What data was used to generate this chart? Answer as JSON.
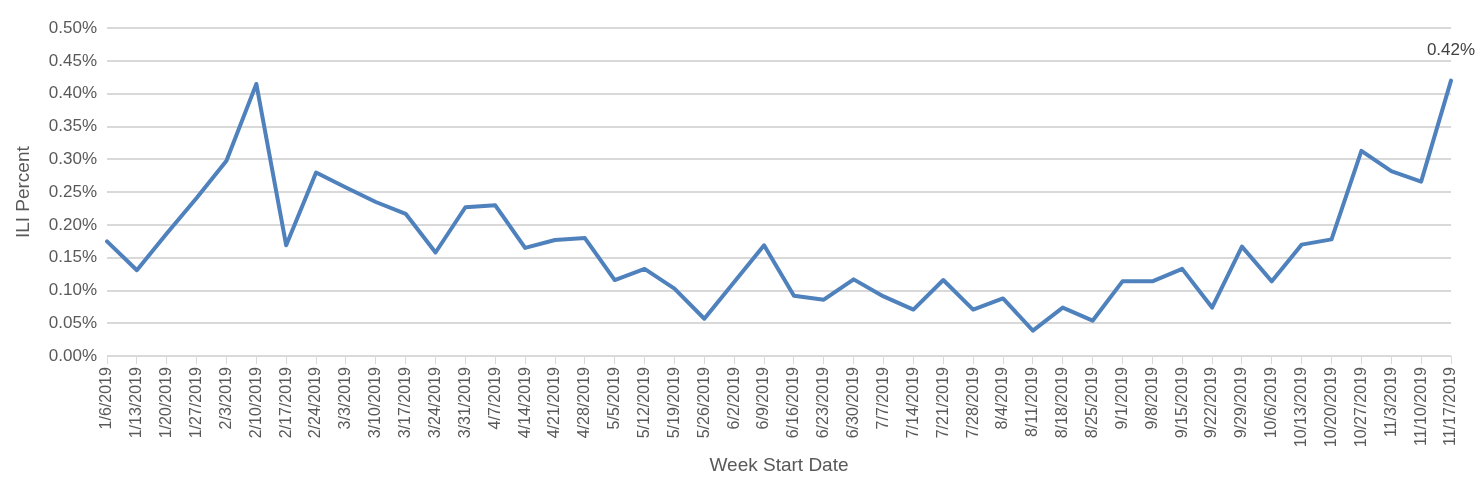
{
  "chart_data": {
    "type": "line",
    "xlabel": "Week Start Date",
    "ylabel": "ILI Percent",
    "categories": [
      "1/6/2019",
      "1/13/2019",
      "1/20/2019",
      "1/27/2019",
      "2/3/2019",
      "2/10/2019",
      "2/17/2019",
      "2/24/2019",
      "3/3/2019",
      "3/10/2019",
      "3/17/2019",
      "3/24/2019",
      "3/31/2019",
      "4/7/2019",
      "4/14/2019",
      "4/21/2019",
      "4/28/2019",
      "5/5/2019",
      "5/12/2019",
      "5/19/2019",
      "5/26/2019",
      "6/2/2019",
      "6/9/2019",
      "6/16/2019",
      "6/23/2019",
      "6/30/2019",
      "7/7/2019",
      "7/14/2019",
      "7/21/2019",
      "7/28/2019",
      "8/4/2019",
      "8/11/2019",
      "8/18/2019",
      "8/25/2019",
      "9/1/2019",
      "9/8/2019",
      "9/15/2019",
      "9/22/2019",
      "9/29/2019",
      "10/6/2019",
      "10/13/2019",
      "10/20/2019",
      "10/27/2019",
      "11/3/2019",
      "11/10/2019",
      "11/17/2019"
    ],
    "values": [
      0.175,
      0.131,
      0.187,
      0.241,
      0.298,
      0.415,
      0.169,
      0.28,
      0.257,
      0.235,
      0.217,
      0.158,
      0.227,
      0.23,
      0.165,
      0.177,
      0.18,
      0.116,
      0.133,
      0.103,
      0.057,
      0.113,
      0.169,
      0.092,
      0.086,
      0.117,
      0.091,
      0.071,
      0.116,
      0.071,
      0.088,
      0.039,
      0.074,
      0.054,
      0.114,
      0.114,
      0.133,
      0.074,
      0.167,
      0.114,
      0.17,
      0.178,
      0.313,
      0.282,
      0.266,
      0.42
    ],
    "value_labels": [
      null,
      null,
      null,
      null,
      null,
      null,
      null,
      null,
      null,
      null,
      null,
      null,
      null,
      null,
      null,
      null,
      null,
      null,
      null,
      null,
      null,
      null,
      null,
      null,
      null,
      null,
      null,
      null,
      null,
      null,
      null,
      null,
      null,
      null,
      null,
      null,
      null,
      null,
      null,
      null,
      null,
      null,
      null,
      null,
      null,
      "0.42%"
    ],
    "color": "#4f81bd",
    "ylim": [
      0,
      0.5
    ],
    "yticks": [
      {
        "value": 0,
        "label": "0.00%"
      },
      {
        "value": 0.05,
        "label": "0.05%"
      },
      {
        "value": 0.1,
        "label": "0.10%"
      },
      {
        "value": 0.15,
        "label": "0.15%"
      },
      {
        "value": 0.2,
        "label": "0.20%"
      },
      {
        "value": 0.25,
        "label": "0.25%"
      },
      {
        "value": 0.3,
        "label": "0.30%"
      },
      {
        "value": 0.35,
        "label": "0.35%"
      },
      {
        "value": 0.4,
        "label": "0.40%"
      },
      {
        "value": 0.45,
        "label": "0.45%"
      },
      {
        "value": 0.5,
        "label": "0.50%"
      }
    ],
    "grid": "y",
    "legend": false,
    "marker": "none",
    "line_style": "solid"
  }
}
